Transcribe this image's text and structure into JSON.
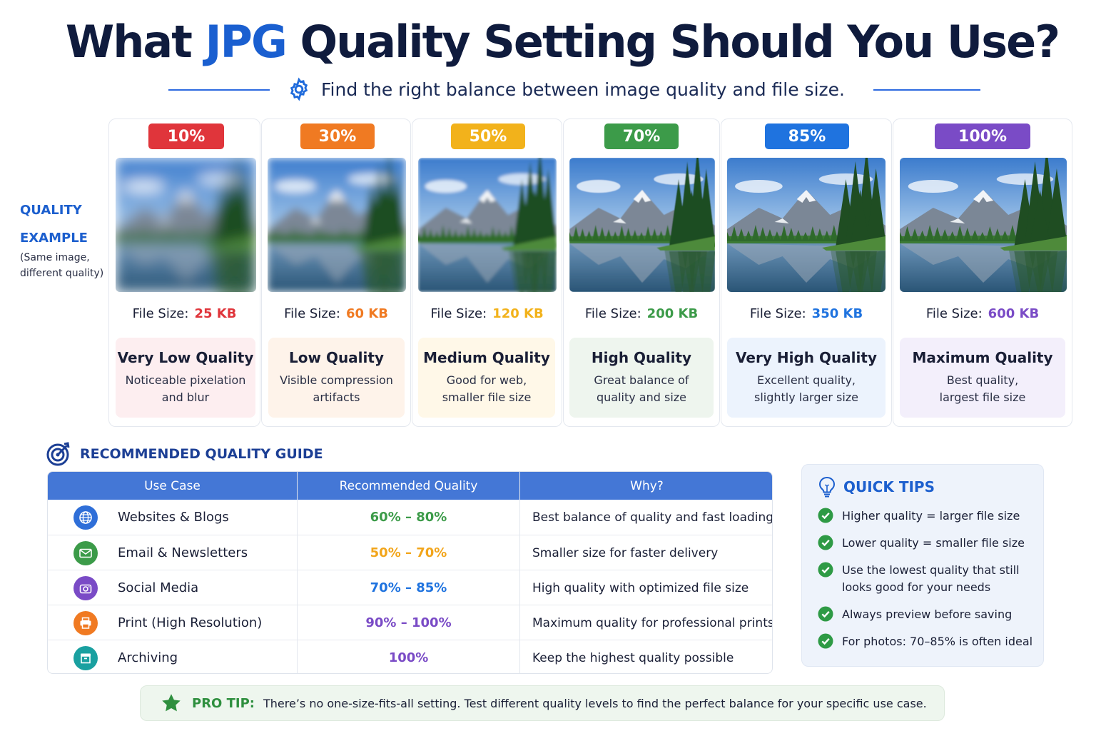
{
  "header": {
    "title_pre": "What ",
    "title_accent": "JPG",
    "title_post": " Quality Setting Should You Use?",
    "subtitle": "Find the right balance between image quality and file size."
  },
  "side_label": {
    "line1": "QUALITY",
    "line2": "EXAMPLE",
    "line3a": "(Same image,",
    "line3b": "different quality)"
  },
  "file_size_label": "File Size:",
  "quality_levels": [
    {
      "percent": "10%",
      "quality": 0.1,
      "color": "#e0353b",
      "box_bg": "#fdeef0",
      "file_size": "25 KB",
      "title": "Very Low Quality",
      "desc1": "Noticeable pixelation",
      "desc2": "and blur"
    },
    {
      "percent": "30%",
      "quality": 0.3,
      "color": "#f07a22",
      "box_bg": "#fef3ea",
      "file_size": "60 KB",
      "title": "Low Quality",
      "desc1": "Visible compression",
      "desc2": "artifacts"
    },
    {
      "percent": "50%",
      "quality": 0.5,
      "color": "#f2b21b",
      "box_bg": "#fff8e8",
      "file_size": "120 KB",
      "title": "Medium Quality",
      "desc1": "Good for web,",
      "desc2": "smaller file size"
    },
    {
      "percent": "70%",
      "quality": 0.7,
      "color": "#3c9b49",
      "box_bg": "#eef5ee",
      "file_size": "200 KB",
      "title": "High Quality",
      "desc1": "Great balance of",
      "desc2": "quality and size"
    },
    {
      "percent": "85%",
      "quality": 0.85,
      "color": "#1f73df",
      "box_bg": "#ecf3fd",
      "file_size": "350 KB",
      "title": "Very High Quality",
      "desc1": "Excellent quality,",
      "desc2": "slightly larger size"
    },
    {
      "percent": "100%",
      "quality": 1.0,
      "color": "#7a4bc6",
      "box_bg": "#f3effb",
      "file_size": "600 KB",
      "title": "Maximum Quality",
      "desc1": "Best quality,",
      "desc2": "largest file size"
    }
  ],
  "guide": {
    "heading": "RECOMMENDED QUALITY GUIDE",
    "columns": [
      "Use Case",
      "Recommended Quality",
      "Why?"
    ],
    "rows": [
      {
        "icon": "globe-icon",
        "icon_color": "#2f6fd8",
        "use_case": "Websites & Blogs",
        "quality": "60% – 80%",
        "quality_color": "#3c9b49",
        "why": "Best balance of quality and fast loading"
      },
      {
        "icon": "envelope-icon",
        "icon_color": "#3c9b49",
        "use_case": "Email & Newsletters",
        "quality": "50% – 70%",
        "quality_color": "#f2a51b",
        "why": "Smaller size for faster delivery"
      },
      {
        "icon": "camera-icon",
        "icon_color": "#7a4bc6",
        "use_case": "Social Media",
        "quality": "70% – 85%",
        "quality_color": "#1f73df",
        "why": "High quality with optimized file size"
      },
      {
        "icon": "printer-icon",
        "icon_color": "#f07a22",
        "use_case": "Print (High Resolution)",
        "quality": "90% – 100%",
        "quality_color": "#7a4bc6",
        "why": "Maximum quality for professional prints"
      },
      {
        "icon": "archive-icon",
        "icon_color": "#1aa0a0",
        "use_case": "Archiving",
        "quality": "100%",
        "quality_color": "#7a4bc6",
        "why": "Keep the highest quality possible"
      }
    ]
  },
  "tips": {
    "heading": "QUICK TIPS",
    "items": [
      {
        "line1": "Higher quality = larger file size",
        "line2": ""
      },
      {
        "line1": "Lower quality = smaller file size",
        "line2": ""
      },
      {
        "line1": "Use the lowest quality that still",
        "line2": "looks good for your needs"
      },
      {
        "line1": "Always preview before saving",
        "line2": ""
      },
      {
        "line1": "For photos: 70–85% is often ideal",
        "line2": ""
      }
    ]
  },
  "pro_tip": {
    "label": "PRO TIP:",
    "text": "There’s no one-size-fits-all setting. Test different quality levels to find the perfect balance for your specific use case."
  }
}
